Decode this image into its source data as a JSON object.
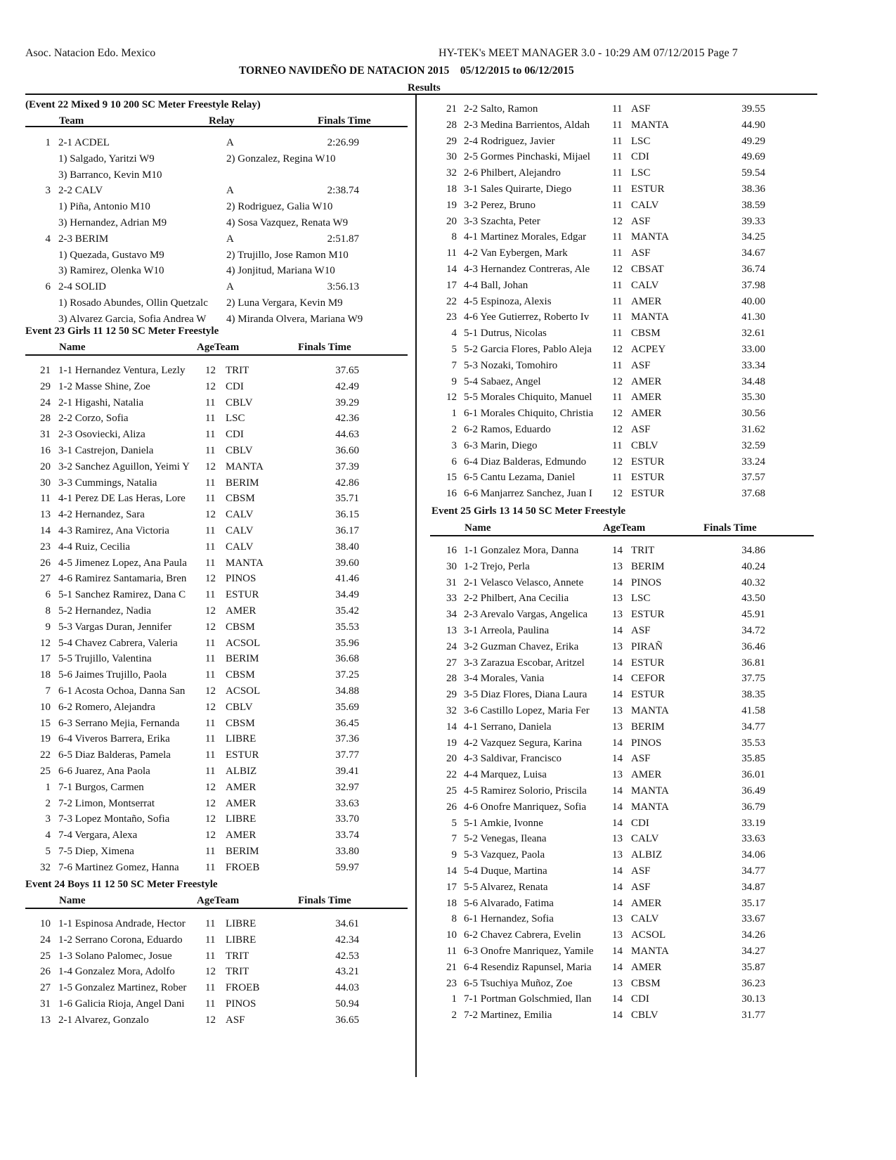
{
  "header": {
    "org": "Asoc. Natacion Edo. Mexico",
    "software": "HY-TEK's MEET MANAGER 3.0 - 10:29 AM  07/12/2015  Page 7",
    "meet_title": "TORNEO NAVIDEÑO DE NATACION 2015    05/12/2015 to 06/12/2015",
    "section": "Results"
  },
  "event22": {
    "title": "(Event 22  Mixed 9 10 200 SC Meter Freestyle Relay)",
    "col_team": "Team",
    "col_relay": "Relay",
    "col_time": "Finals Time",
    "teams": [
      {
        "place": "1",
        "team": "2-1 ACDEL",
        "relay": "A",
        "time": "2:26.99",
        "s1": "1) Salgado, Yaritzi W9",
        "s2": "2) Gonzalez, Regina W10",
        "s3": "3) Barranco, Kevin M10",
        "s4": ""
      },
      {
        "place": "3",
        "team": "2-2 CALV",
        "relay": "A",
        "time": "2:38.74",
        "s1": "1) Piña, Antonio M10",
        "s2": "2) Rodriguez, Galia W10",
        "s3": "3) Hernandez, Adrian M9",
        "s4": "4) Sosa Vazquez, Renata W9"
      },
      {
        "place": "4",
        "team": "2-3 BERIM",
        "relay": "A",
        "time": "2:51.87",
        "s1": "1) Quezada, Gustavo M9",
        "s2": "2) Trujillo, Jose Ramon M10",
        "s3": "3) Ramirez, Olenka W10",
        "s4": "4) Jonjitud, Mariana W10"
      },
      {
        "place": "6",
        "team": "2-4 SOLID",
        "relay": "A",
        "time": "3:56.13",
        "s1": "1) Rosado Abundes, Ollin Quetzalc",
        "s2": "2) Luna Vergara, Kevin M9",
        "s3": "3) Alvarez Garcia, Sofia Andrea W",
        "s4": "4) Miranda Olvera, Mariana W9"
      }
    ]
  },
  "event23": {
    "title": "Event 23  Girls 11 12 50 SC Meter Freestyle",
    "col_name": "Name",
    "col_ageteam": "AgeTeam",
    "col_time": "Finals Time",
    "rows": [
      [
        "21",
        "1-1 Hernandez Ventura, Lezly",
        "12",
        "TRIT",
        "37.65"
      ],
      [
        "29",
        "1-2 Masse Shine, Zoe",
        "12",
        "CDI",
        "42.49"
      ],
      [
        "24",
        "2-1 Higashi, Natalia",
        "11",
        "CBLV",
        "39.29"
      ],
      [
        "28",
        "2-2 Corzo, Sofia",
        "11",
        "LSC",
        "42.36"
      ],
      [
        "31",
        "2-3 Osoviecki, Aliza",
        "11",
        "CDI",
        "44.63"
      ],
      [
        "16",
        "3-1 Castrejon, Daniela",
        "11",
        "CBLV",
        "36.60"
      ],
      [
        "20",
        "3-2 Sanchez Aguillon, Yeimi Y",
        "12",
        "MANTA",
        "37.39"
      ],
      [
        "30",
        "3-3 Cummings, Natalia",
        "11",
        "BERIM",
        "42.86"
      ],
      [
        "11",
        "4-1 Perez DE Las Heras, Lore",
        "11",
        "CBSM",
        "35.71"
      ],
      [
        "13",
        "4-2 Hernandez, Sara",
        "12",
        "CALV",
        "36.15"
      ],
      [
        "14",
        "4-3 Ramirez, Ana Victoria",
        "11",
        "CALV",
        "36.17"
      ],
      [
        "23",
        "4-4 Ruiz, Cecilia",
        "11",
        "CALV",
        "38.40"
      ],
      [
        "26",
        "4-5 Jimenez Lopez, Ana Paula",
        "11",
        "MANTA",
        "39.60"
      ],
      [
        "27",
        "4-6 Ramirez Santamaria, Bren",
        "12",
        "PINOS",
        "41.46"
      ],
      [
        "6",
        "5-1 Sanchez Ramirez, Dana C",
        "11",
        "ESTUR",
        "34.49"
      ],
      [
        "8",
        "5-2 Hernandez, Nadia",
        "12",
        "AMER",
        "35.42"
      ],
      [
        "9",
        "5-3 Vargas Duran, Jennifer",
        "12",
        "CBSM",
        "35.53"
      ],
      [
        "12",
        "5-4 Chavez Cabrera, Valeria",
        "11",
        "ACSOL",
        "35.96"
      ],
      [
        "17",
        "5-5 Trujillo, Valentina",
        "11",
        "BERIM",
        "36.68"
      ],
      [
        "18",
        "5-6 Jaimes Trujillo, Paola",
        "11",
        "CBSM",
        "37.25"
      ],
      [
        "7",
        "6-1 Acosta Ochoa, Danna San",
        "12",
        "ACSOL",
        "34.88"
      ],
      [
        "10",
        "6-2 Romero, Alejandra",
        "12",
        "CBLV",
        "35.69"
      ],
      [
        "15",
        "6-3 Serrano Mejia, Fernanda",
        "11",
        "CBSM",
        "36.45"
      ],
      [
        "19",
        "6-4 Viveros Barrera, Erika",
        "11",
        "LIBRE",
        "37.36"
      ],
      [
        "22",
        "6-5 Diaz Balderas, Pamela",
        "11",
        "ESTUR",
        "37.77"
      ],
      [
        "25",
        "6-6 Juarez, Ana Paola",
        "11",
        "ALBIZ",
        "39.41"
      ],
      [
        "1",
        "7-1 Burgos, Carmen",
        "12",
        "AMER",
        "32.97"
      ],
      [
        "2",
        "7-2 Limon, Montserrat",
        "12",
        "AMER",
        "33.63"
      ],
      [
        "3",
        "7-3 Lopez Montaño, Sofia",
        "12",
        "LIBRE",
        "33.70"
      ],
      [
        "4",
        "7-4 Vergara, Alexa",
        "12",
        "AMER",
        "33.74"
      ],
      [
        "5",
        "7-5 Diep, Ximena",
        "11",
        "BERIM",
        "33.80"
      ],
      [
        "32",
        "7-6 Martinez Gomez, Hanna",
        "11",
        "FROEB",
        "59.97"
      ]
    ]
  },
  "event24": {
    "title": "Event 24  Boys 11 12 50 SC Meter Freestyle",
    "col_name": "Name",
    "col_ageteam": "AgeTeam",
    "col_time": "Finals Time",
    "rows": [
      [
        "10",
        "1-1 Espinosa Andrade, Hector",
        "11",
        "LIBRE",
        "34.61"
      ],
      [
        "24",
        "1-2 Serrano Corona, Eduardo",
        "11",
        "LIBRE",
        "42.34"
      ],
      [
        "25",
        "1-3 Solano Palomec, Josue",
        "11",
        "TRIT",
        "42.53"
      ],
      [
        "26",
        "1-4 Gonzalez Mora, Adolfo",
        "12",
        "TRIT",
        "43.21"
      ],
      [
        "27",
        "1-5 Gonzalez Martinez, Rober",
        "11",
        "FROEB",
        "44.03"
      ],
      [
        "31",
        "1-6 Galicia Rioja, Angel Dani",
        "11",
        "PINOS",
        "50.94"
      ],
      [
        "13",
        "2-1 Alvarez, Gonzalo",
        "12",
        "ASF",
        "36.65"
      ],
      [
        "21",
        "2-2 Salto, Ramon",
        "11",
        "ASF",
        "39.55"
      ],
      [
        "28",
        "2-3 Medina Barrientos, Aldah",
        "11",
        "MANTA",
        "44.90"
      ],
      [
        "29",
        "2-4 Rodriguez, Javier",
        "11",
        "LSC",
        "49.29"
      ],
      [
        "30",
        "2-5 Gormes Pinchaski, Mijael",
        "11",
        "CDI",
        "49.69"
      ],
      [
        "32",
        "2-6 Philbert, Alejandro",
        "11",
        "LSC",
        "59.54"
      ],
      [
        "18",
        "3-1 Sales Quirarte, Diego",
        "11",
        "ESTUR",
        "38.36"
      ],
      [
        "19",
        "3-2 Perez, Bruno",
        "11",
        "CALV",
        "38.59"
      ],
      [
        "20",
        "3-3 Szachta, Peter",
        "12",
        "ASF",
        "39.33"
      ],
      [
        "8",
        "4-1 Martinez Morales, Edgar",
        "11",
        "MANTA",
        "34.25"
      ],
      [
        "11",
        "4-2 Van Eybergen, Mark",
        "11",
        "ASF",
        "34.67"
      ],
      [
        "14",
        "4-3 Hernandez Contreras, Ale",
        "12",
        "CBSAT",
        "36.74"
      ],
      [
        "17",
        "4-4 Ball, Johan",
        "11",
        "CALV",
        "37.98"
      ],
      [
        "22",
        "4-5 Espinoza, Alexis",
        "11",
        "AMER",
        "40.00"
      ],
      [
        "23",
        "4-6 Yee Gutierrez, Roberto Iv",
        "11",
        "MANTA",
        "41.30"
      ],
      [
        "4",
        "5-1 Dutrus, Nicolas",
        "11",
        "CBSM",
        "32.61"
      ],
      [
        "5",
        "5-2 Garcia Flores, Pablo Aleja",
        "12",
        "ACPEY",
        "33.00"
      ],
      [
        "7",
        "5-3 Nozaki, Tomohiro",
        "11",
        "ASF",
        "33.34"
      ],
      [
        "9",
        "5-4 Sabaez, Angel",
        "12",
        "AMER",
        "34.48"
      ],
      [
        "12",
        "5-5 Morales Chiquito, Manuel",
        "11",
        "AMER",
        "35.30"
      ],
      [
        "1",
        "6-1 Morales Chiquito, Christia",
        "12",
        "AMER",
        "30.56"
      ],
      [
        "2",
        "6-2 Ramos, Eduardo",
        "12",
        "ASF",
        "31.62"
      ],
      [
        "3",
        "6-3 Marin, Diego",
        "11",
        "CBLV",
        "32.59"
      ],
      [
        "6",
        "6-4 Diaz Balderas, Edmundo",
        "12",
        "ESTUR",
        "33.24"
      ],
      [
        "15",
        "6-5 Cantu Lezama, Daniel",
        "11",
        "ESTUR",
        "37.57"
      ],
      [
        "16",
        "6-6 Manjarrez Sanchez, Juan I",
        "12",
        "ESTUR",
        "37.68"
      ]
    ]
  },
  "event25": {
    "title": "Event 25  Girls 13 14 50 SC Meter Freestyle",
    "col_name": "Name",
    "col_ageteam": "AgeTeam",
    "col_time": "Finals Time",
    "rows": [
      [
        "16",
        "1-1 Gonzalez Mora, Danna",
        "14",
        "TRIT",
        "34.86"
      ],
      [
        "30",
        "1-2 Trejo, Perla",
        "13",
        "BERIM",
        "40.24"
      ],
      [
        "31",
        "2-1 Velasco Velasco, Annete",
        "14",
        "PINOS",
        "40.32"
      ],
      [
        "33",
        "2-2 Philbert, Ana Cecilia",
        "13",
        "LSC",
        "43.50"
      ],
      [
        "34",
        "2-3 Arevalo Vargas, Angelica",
        "13",
        "ESTUR",
        "45.91"
      ],
      [
        "13",
        "3-1 Arreola, Paulina",
        "14",
        "ASF",
        "34.72"
      ],
      [
        "24",
        "3-2 Guzman Chavez, Erika",
        "13",
        "PIRAÑ",
        "36.46"
      ],
      [
        "27",
        "3-3 Zarazua Escobar, Aritzel",
        "14",
        "ESTUR",
        "36.81"
      ],
      [
        "28",
        "3-4 Morales, Vania",
        "14",
        "CEFOR",
        "37.75"
      ],
      [
        "29",
        "3-5 Diaz Flores, Diana Laura",
        "14",
        "ESTUR",
        "38.35"
      ],
      [
        "32",
        "3-6 Castillo Lopez, Maria Fer",
        "13",
        "MANTA",
        "41.58"
      ],
      [
        "14",
        "4-1 Serrano, Daniela",
        "13",
        "BERIM",
        "34.77"
      ],
      [
        "19",
        "4-2 Vazquez Segura, Karina",
        "14",
        "PINOS",
        "35.53"
      ],
      [
        "20",
        "4-3 Saldivar, Francisco",
        "14",
        "ASF",
        "35.85"
      ],
      [
        "22",
        "4-4 Marquez, Luisa",
        "13",
        "AMER",
        "36.01"
      ],
      [
        "25",
        "4-5 Ramirez Solorio, Priscila",
        "14",
        "MANTA",
        "36.49"
      ],
      [
        "26",
        "4-6 Onofre Manriquez, Sofia",
        "14",
        "MANTA",
        "36.79"
      ],
      [
        "5",
        "5-1 Amkie, Ivonne",
        "14",
        "CDI",
        "33.19"
      ],
      [
        "7",
        "5-2 Venegas, Ileana",
        "13",
        "CALV",
        "33.63"
      ],
      [
        "9",
        "5-3 Vazquez, Paola",
        "13",
        "ALBIZ",
        "34.06"
      ],
      [
        "14",
        "5-4 Duque, Martina",
        "14",
        "ASF",
        "34.77"
      ],
      [
        "17",
        "5-5 Alvarez, Renata",
        "14",
        "ASF",
        "34.87"
      ],
      [
        "18",
        "5-6 Alvarado, Fatima",
        "14",
        "AMER",
        "35.17"
      ],
      [
        "8",
        "6-1 Hernandez, Sofia",
        "13",
        "CALV",
        "33.67"
      ],
      [
        "10",
        "6-2 Chavez Cabrera, Evelin",
        "13",
        "ACSOL",
        "34.26"
      ],
      [
        "11",
        "6-3 Onofre Manriquez, Yamile",
        "14",
        "MANTA",
        "34.27"
      ],
      [
        "21",
        "6-4 Resendiz Rapunsel, Maria",
        "14",
        "AMER",
        "35.87"
      ],
      [
        "23",
        "6-5 Tsuchiya Muñoz, Zoe",
        "13",
        "CBSM",
        "36.23"
      ],
      [
        "1",
        "7-1 Portman Golschmied, Ilan",
        "14",
        "CDI",
        "30.13"
      ],
      [
        "2",
        "7-2 Martinez, Emilia",
        "14",
        "CBLV",
        "31.77"
      ]
    ]
  }
}
